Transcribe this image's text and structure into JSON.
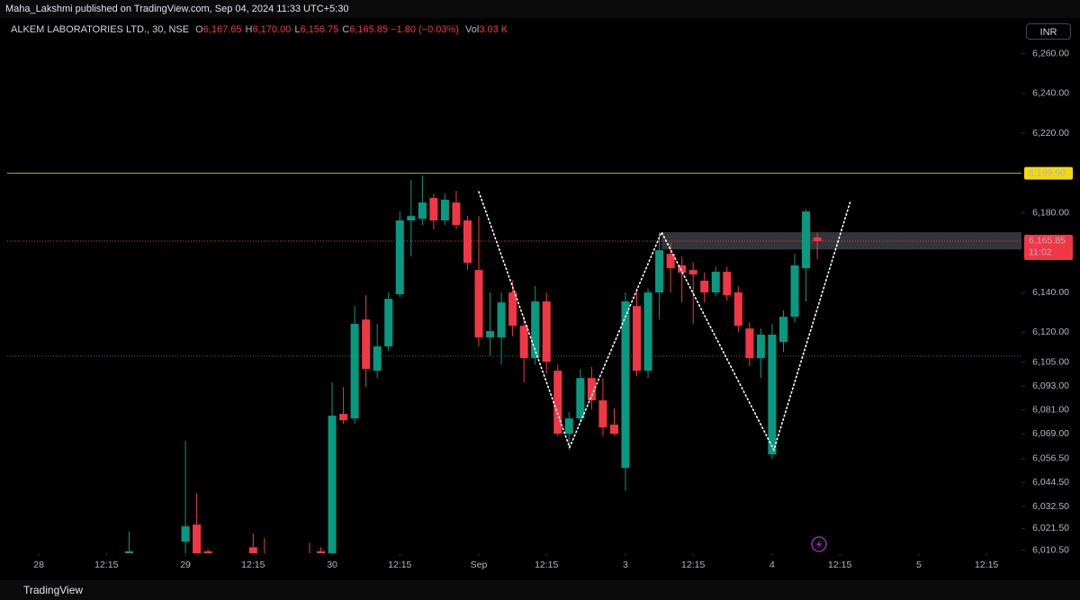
{
  "header": {
    "publisher": "Maha_Lakshmi published on TradingView.com, Sep 04, 2024 11:33 UTC+5:30"
  },
  "footer": {
    "brand": "TradingView"
  },
  "currency_button": "INR",
  "legend": {
    "symbol": "ALKEM LABORATORIES LTD., 30, NSE",
    "items": [
      {
        "key": "O",
        "value": "6,167.65"
      },
      {
        "key": "H",
        "value": "6,170.00"
      },
      {
        "key": "L",
        "value": "6,156.75"
      },
      {
        "key": "C",
        "value": "6,165.85"
      }
    ],
    "change": "−1.80 (−0.03%)",
    "volume": {
      "key": "Vol",
      "value": "3.03 K"
    }
  },
  "chart_data": {
    "type": "candlestick",
    "up_color": "#089981",
    "down_color": "#f23645",
    "x": [
      8,
      13,
      14,
      15,
      19,
      20,
      24,
      25,
      26,
      27,
      28,
      29,
      30,
      31,
      32,
      33,
      34,
      35,
      36,
      37,
      38,
      39,
      40,
      41,
      42,
      43,
      44,
      45,
      46,
      47,
      48,
      49,
      50,
      51,
      52,
      53,
      54,
      55,
      56,
      57,
      58,
      59,
      60,
      61,
      62,
      63,
      64,
      65,
      66,
      67,
      68,
      69
    ],
    "open": [
      6008,
      6014.8,
      6023.4,
      6010,
      6012,
      6008,
      6006,
      6010,
      5998,
      6079,
      6076.7,
      6126.4,
      6100.7,
      6112.9,
      6139.1,
      6176.2,
      6177,
      6187.5,
      6176.2,
      6185.2,
      6176.2,
      6151.3,
      6117.4,
      6117.4,
      6140,
      6123.3,
      6107,
      6135.5,
      6100.7,
      6069,
      6076.7,
      6097,
      6085.8,
      6073.6,
      6051.9,
      6133.2,
      6100.7,
      6140,
      6159.4,
      6153.6,
      6151.3,
      6145.9,
      6140,
      6150.4,
      6140,
      6121.9,
      6107,
      6058.6,
      6115.1,
      6127.8,
      6152.2,
      6167.65
    ],
    "high": [
      6020,
      6065.4,
      6039.2,
      6011,
      6018.9,
      6016.6,
      6014.3,
      6012,
      6094.8,
      6092.5,
      6133.2,
      6138.6,
      6124.2,
      6140,
      6180.7,
      6196.5,
      6198.8,
      6189.7,
      6189.7,
      6191.1,
      6178.4,
      6178.4,
      6140,
      6140,
      6146,
      6128,
      6143.2,
      6140,
      6103.8,
      6080,
      6101.6,
      6102.5,
      6097,
      6082,
      6140,
      6142,
      6142,
      6170.3,
      6165,
      6158,
      6155,
      6150,
      6153,
      6153,
      6143,
      6125,
      6121.9,
      6124.2,
      6131,
      6159.4,
      6182,
      6170
    ],
    "low": [
      6000,
      6000,
      6000,
      6000,
      6000,
      5998,
      5995,
      6000,
      5990,
      6074,
      6074,
      6092.5,
      6097,
      6110.6,
      6137.7,
      6158.1,
      6173.9,
      6171.7,
      6173.9,
      6171.7,
      6151.3,
      6112.9,
      6108.3,
      6103.8,
      6118,
      6094.8,
      6103.8,
      6099.3,
      6067.7,
      6061,
      6074.4,
      6081.2,
      6068,
      6068,
      6040.6,
      6098,
      6097,
      6126.4,
      6140,
      6135,
      6124.2,
      6135,
      6138,
      6136,
      6120,
      6103,
      6097,
      6056.4,
      6110,
      6125,
      6135.5,
      6156.75
    ],
    "close": [
      6010,
      6022.5,
      6005,
      6008,
      6005,
      6004,
      6002,
      6008,
      6078.1,
      6075.8,
      6124.2,
      6101.6,
      6112.9,
      6136.8,
      6176.2,
      6178.4,
      6185.2,
      6176.2,
      6186.6,
      6173.9,
      6154.9,
      6117.4,
      6120.6,
      6135,
      6123.3,
      6107,
      6135.5,
      6105.2,
      6069,
      6076.7,
      6097,
      6085.8,
      6072.2,
      6069,
      6135.5,
      6100.7,
      6140,
      6161.2,
      6152.2,
      6150,
      6149,
      6140,
      6150.4,
      6138.6,
      6123.3,
      6107,
      6118.8,
      6118.8,
      6127.8,
      6153.6,
      6180.7,
      6165.85
    ],
    "xlim": [
      -2.8,
      87.1
    ],
    "xticks": [
      {
        "value": 0,
        "label": "28"
      },
      {
        "value": 6,
        "label": "12:15"
      },
      {
        "value": 13,
        "label": "29"
      },
      {
        "value": 19,
        "label": "12:15"
      },
      {
        "value": 26,
        "label": "30"
      },
      {
        "value": 32,
        "label": "12:15"
      },
      {
        "value": 39,
        "label": "Sep"
      },
      {
        "value": 45,
        "label": "12:15"
      },
      {
        "value": 52,
        "label": "3"
      },
      {
        "value": 58,
        "label": "12:15"
      },
      {
        "value": 65,
        "label": "4"
      },
      {
        "value": 71,
        "label": "12:15"
      },
      {
        "value": 78,
        "label": "5"
      },
      {
        "value": 84,
        "label": "12:15"
      }
    ],
    "ylim": [
      6009,
      6277
    ],
    "yticks": [
      {
        "value": 6260,
        "label": "6,260.00"
      },
      {
        "value": 6240,
        "label": "6,240.00"
      },
      {
        "value": 6220,
        "label": "6,220.00"
      },
      {
        "value": 6180,
        "label": "6,180.00"
      },
      {
        "value": 6140,
        "label": "6,140.00"
      },
      {
        "value": 6120,
        "label": "6,120.00"
      },
      {
        "value": 6105,
        "label": "6,105.00"
      },
      {
        "value": 6093,
        "label": "6,093.00"
      },
      {
        "value": 6081,
        "label": "6,081.00"
      },
      {
        "value": 6069,
        "label": "6,069.00"
      },
      {
        "value": 6056.5,
        "label": "6,056.50"
      },
      {
        "value": 6044.5,
        "label": "6,044.50"
      },
      {
        "value": 6032.5,
        "label": "6,032.50"
      },
      {
        "value": 6021.5,
        "label": "6,021.50"
      },
      {
        "value": 6010.5,
        "label": "6,010.50"
      }
    ],
    "price_line": {
      "value": 6199.9,
      "label": "6,199.90",
      "color": "#f5d90a"
    },
    "last_price": {
      "value": 6165.85,
      "label": "6,165.85",
      "countdown": "11:02",
      "color": "#f23645"
    },
    "reference_line": {
      "value": 6108,
      "color": "#5d606b"
    },
    "zone": {
      "x_start": 55.2,
      "low": 6161.6,
      "high": 6170.3,
      "color": "#5d606b"
    },
    "zigzag": {
      "x": [
        39.0,
        47.05,
        55.2,
        65.15,
        71.9
      ],
      "y": [
        6190.6,
        6062.2,
        6170.3,
        6060.9,
        6185.2
      ],
      "color": "#ffffff"
    }
  }
}
